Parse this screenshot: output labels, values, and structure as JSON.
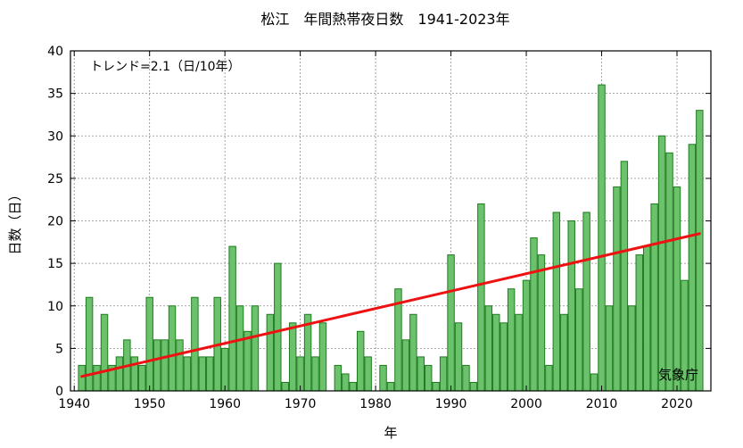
{
  "chart_data": {
    "type": "bar",
    "title": "松江　年間熱帯夜日数　1941-2023年",
    "xlabel": "年",
    "ylabel": "日数（日）",
    "trend_text": "トレンド=2.1（日/10年）",
    "source": "気象庁",
    "xlim": [
      1939.5,
      2024.5
    ],
    "ylim": [
      0,
      40
    ],
    "x_ticks": [
      1940,
      1950,
      1960,
      1970,
      1980,
      1990,
      2000,
      2010,
      2020
    ],
    "y_ticks": [
      0,
      5,
      10,
      15,
      20,
      25,
      30,
      35,
      40
    ],
    "grid": true,
    "bar_fill": "#6cc16c",
    "bar_stroke": "#1e7d1e",
    "trend_color": "#ee1111",
    "x": [
      1941,
      1942,
      1943,
      1944,
      1945,
      1946,
      1947,
      1948,
      1949,
      1950,
      1951,
      1952,
      1953,
      1954,
      1955,
      1956,
      1957,
      1958,
      1959,
      1960,
      1961,
      1962,
      1963,
      1964,
      1965,
      1966,
      1967,
      1968,
      1969,
      1970,
      1971,
      1972,
      1973,
      1974,
      1975,
      1976,
      1977,
      1978,
      1979,
      1980,
      1981,
      1982,
      1983,
      1984,
      1985,
      1986,
      1987,
      1988,
      1989,
      1990,
      1991,
      1992,
      1993,
      1994,
      1995,
      1996,
      1997,
      1998,
      1999,
      2000,
      2001,
      2002,
      2003,
      2004,
      2005,
      2006,
      2007,
      2008,
      2009,
      2010,
      2011,
      2012,
      2013,
      2014,
      2015,
      2016,
      2017,
      2018,
      2019,
      2020,
      2021,
      2022,
      2023
    ],
    "values": [
      3,
      11,
      3,
      9,
      3,
      4,
      6,
      4,
      3,
      11,
      6,
      6,
      10,
      6,
      4,
      11,
      4,
      4,
      11,
      5,
      17,
      10,
      7,
      10,
      0,
      9,
      15,
      1,
      8,
      4,
      9,
      4,
      8,
      0,
      3,
      2,
      1,
      7,
      4,
      0,
      3,
      1,
      12,
      6,
      9,
      4,
      3,
      1,
      4,
      16,
      8,
      3,
      1,
      22,
      10,
      9,
      8,
      12,
      9,
      13,
      18,
      16,
      3,
      21,
      9,
      20,
      12,
      21,
      2,
      36,
      10,
      24,
      27,
      10,
      16,
      17,
      22,
      30,
      28,
      24,
      13,
      29,
      33
    ],
    "trend": {
      "start": [
        1941,
        1.7
      ],
      "end": [
        2023,
        18.5
      ]
    }
  }
}
